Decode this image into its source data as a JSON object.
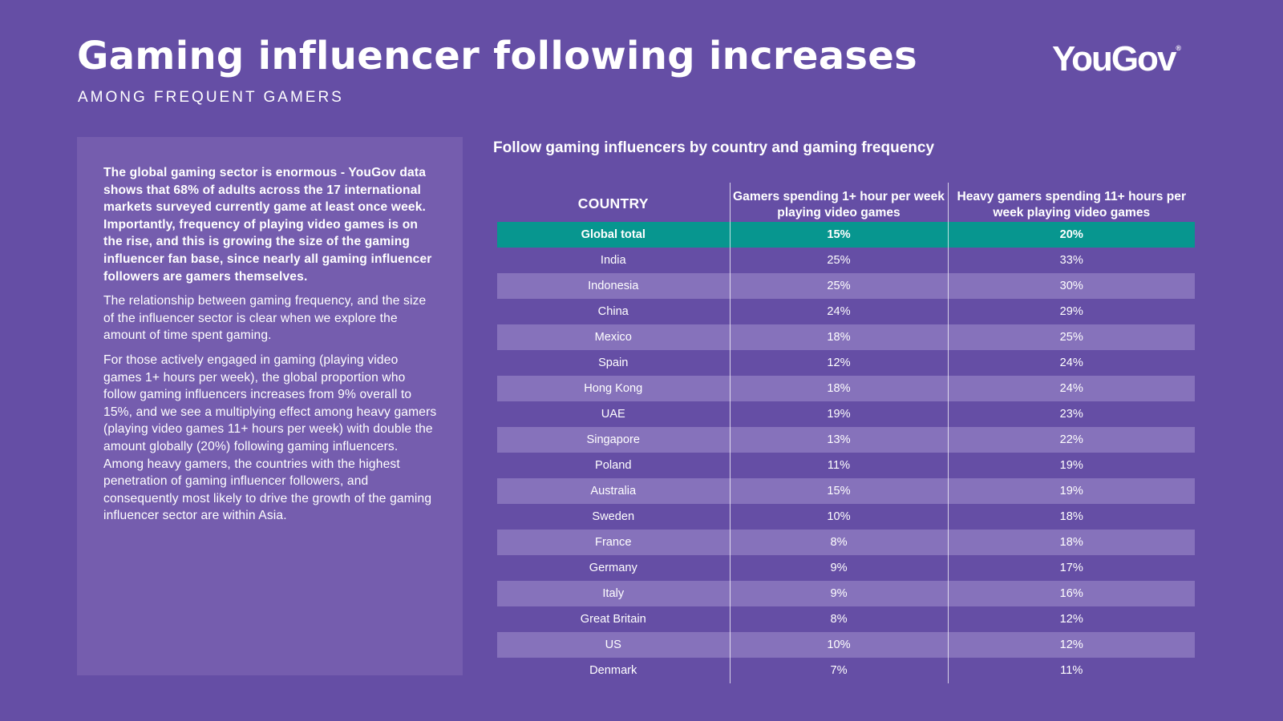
{
  "header": {
    "title": "Gaming influencer following increases",
    "subtitle": "AMONG FREQUENT GAMERS",
    "logo": "YouGov",
    "logo_mark": "®"
  },
  "text_panel": {
    "paragraphs": [
      "The global gaming sector is enormous - YouGov data shows that 68% of adults across the 17 international markets surveyed currently game at least once week. Importantly, frequency of playing video games is on the rise, and this is growing the size of the gaming influencer fan base, since nearly all gaming influencer followers are gamers themselves.",
      "The relationship between gaming frequency, and the size of the influencer sector is clear when we explore the amount of time spent gaming.",
      "For those actively engaged in gaming (playing video games 1+ hours per week), the global proportion who follow gaming influencers increases from 9% overall to 15%, and we see a multiplying effect among heavy gamers (playing video games 11+ hours per week) with double the amount globally (20%) following gaming influencers. Among heavy gamers, the countries with the highest penetration of gaming influencer followers, and consequently most likely to drive the growth of the gaming influencer sector are within Asia."
    ]
  },
  "table": {
    "title": "Follow gaming influencers by country and gaming frequency",
    "headers": [
      "COUNTRY",
      "Gamers spending 1+ hour per week playing video games",
      "Heavy gamers spending 11+ hours per week playing video games"
    ],
    "rows": [
      [
        "Global total",
        "15%",
        "20%"
      ],
      [
        "India",
        "25%",
        "33%"
      ],
      [
        "Indonesia",
        "25%",
        "30%"
      ],
      [
        "China",
        "24%",
        "29%"
      ],
      [
        "Mexico",
        "18%",
        "25%"
      ],
      [
        "Spain",
        "12%",
        "24%"
      ],
      [
        "Hong Kong",
        "18%",
        "24%"
      ],
      [
        "UAE",
        "19%",
        "23%"
      ],
      [
        "Singapore",
        "13%",
        "22%"
      ],
      [
        "Poland",
        "11%",
        "19%"
      ],
      [
        "Australia",
        "15%",
        "19%"
      ],
      [
        "Sweden",
        "10%",
        "18%"
      ],
      [
        "France",
        "8%",
        "18%"
      ],
      [
        "Germany",
        "9%",
        "17%"
      ],
      [
        "Italy",
        "9%",
        "16%"
      ],
      [
        "Great Britain",
        "8%",
        "12%"
      ],
      [
        "US",
        "10%",
        "12%"
      ],
      [
        "Denmark",
        "7%",
        "11%"
      ]
    ]
  },
  "colors": {
    "background": "#654ea5",
    "panel": "#755dae",
    "row_alt": "#8672bb",
    "highlight": "#07968f"
  }
}
